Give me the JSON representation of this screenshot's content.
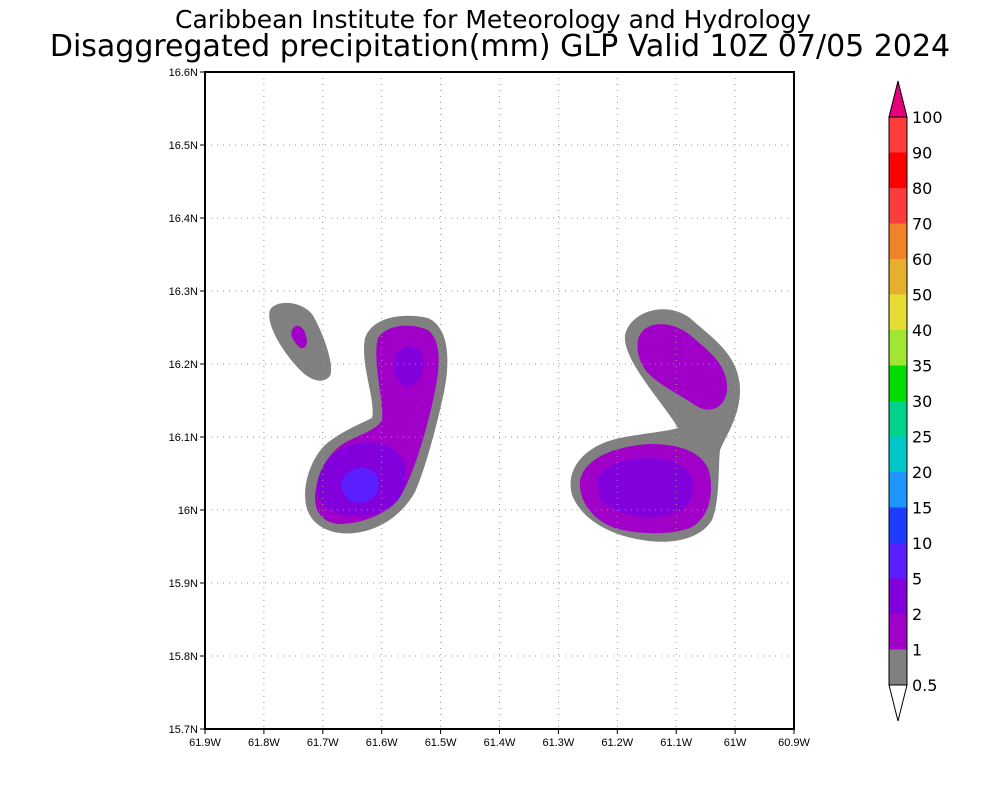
{
  "header": {
    "institute": "Caribbean Institute for Meteorology and Hydrology",
    "product": "Disaggregated precipitation(mm) GLP Valid 10Z 07/05 2024"
  },
  "map": {
    "lon_range": [
      -61.9,
      -60.9
    ],
    "lat_range": [
      15.7,
      16.6
    ],
    "grid": true,
    "x_ticks": [
      {
        "lon": -61.9,
        "label": "61.9W"
      },
      {
        "lon": -61.8,
        "label": "61.8W"
      },
      {
        "lon": -61.7,
        "label": "61.7W"
      },
      {
        "lon": -61.6,
        "label": "61.6W"
      },
      {
        "lon": -61.5,
        "label": "61.5W"
      },
      {
        "lon": -61.4,
        "label": "61.4W"
      },
      {
        "lon": -61.3,
        "label": "61.3W"
      },
      {
        "lon": -61.2,
        "label": "61.2W"
      },
      {
        "lon": -61.1,
        "label": "61.1W"
      },
      {
        "lon": -61.0,
        "label": "61W"
      },
      {
        "lon": -60.9,
        "label": "60.9W"
      }
    ],
    "y_ticks": [
      {
        "lat": 16.6,
        "label": "16.6N"
      },
      {
        "lat": 16.5,
        "label": "16.5N"
      },
      {
        "lat": 16.4,
        "label": "16.4N"
      },
      {
        "lat": 16.3,
        "label": "16.3N"
      },
      {
        "lat": 16.2,
        "label": "16.2N"
      },
      {
        "lat": 16.1,
        "label": "16.1N"
      },
      {
        "lat": 16.0,
        "label": "16N"
      },
      {
        "lat": 15.9,
        "label": "15.9N"
      },
      {
        "lat": 15.8,
        "label": "15.8N"
      },
      {
        "lat": 15.7,
        "label": "15.7N"
      }
    ],
    "precip_regions": [
      {
        "name": "guadeloupe-west-outer",
        "level": "0.5-1",
        "color": "#808080"
      },
      {
        "name": "guadeloupe-west-main",
        "level": "1-2",
        "color": "#a000c8"
      },
      {
        "name": "guadeloupe-west-core",
        "level": "2-5",
        "color": "#8200dc"
      },
      {
        "name": "guadeloupe-west-peak",
        "level": "5-10",
        "color": "#5a1eff"
      },
      {
        "name": "guadeloupe-east-outer",
        "level": "0.5-1",
        "color": "#808080"
      },
      {
        "name": "guadeloupe-east-main",
        "level": "1-2",
        "color": "#a000c8"
      },
      {
        "name": "guadeloupe-east-core",
        "level": "2-5",
        "color": "#8200dc"
      }
    ]
  },
  "colorbar": {
    "levels": [
      "0.5",
      "1",
      "2",
      "5",
      "10",
      "15",
      "20",
      "25",
      "30",
      "35",
      "40",
      "50",
      "60",
      "70",
      "80",
      "90",
      "100"
    ],
    "under_color": "#ffffff",
    "colors": [
      "#808080",
      "#a000c8",
      "#8200dc",
      "#5a1eff",
      "#1e3cff",
      "#1e96ff",
      "#00c8c8",
      "#00d28c",
      "#00dc00",
      "#a0e632",
      "#e6dc32",
      "#e6af2d",
      "#f08228",
      "#fa3c3c",
      "#ff0000",
      "#ff3c3c"
    ],
    "over_color": "#e6007a"
  }
}
